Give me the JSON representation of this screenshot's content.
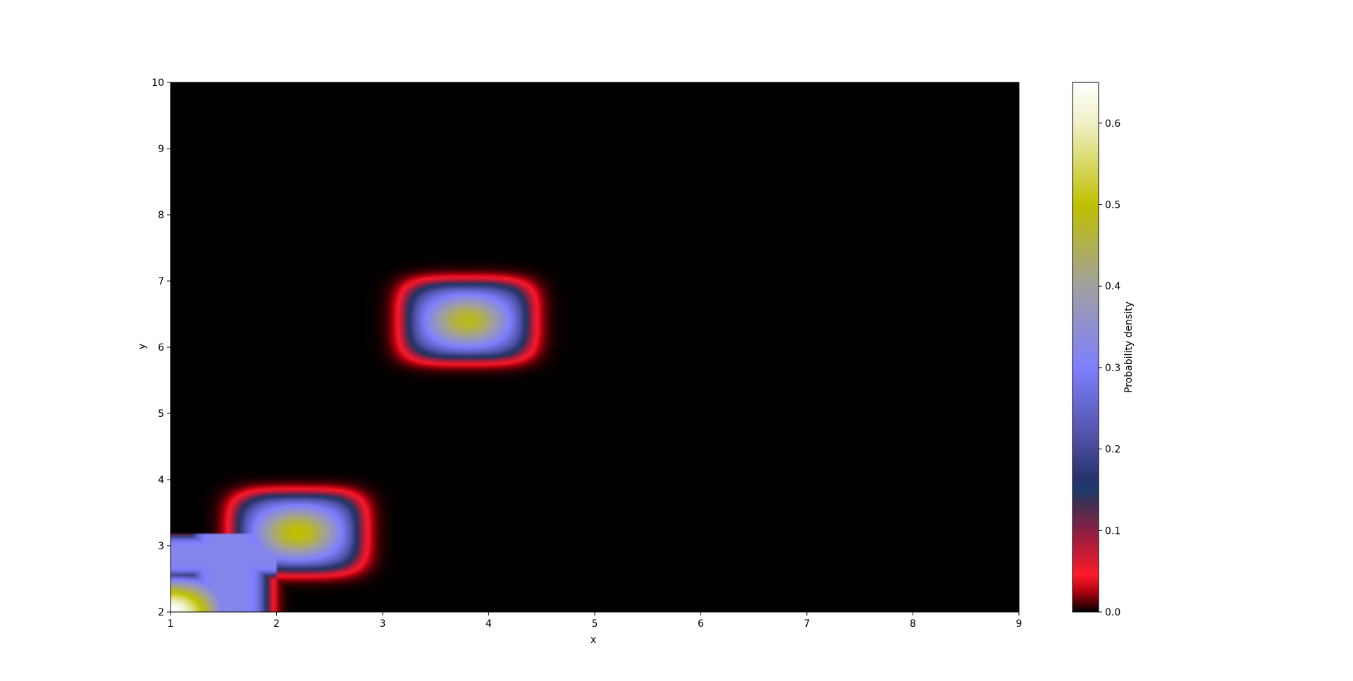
{
  "chart_data": {
    "type": "heatmap",
    "title": "",
    "xlabel": "x",
    "ylabel": "y",
    "xlim": [
      1,
      9
    ],
    "ylim": [
      2,
      10
    ],
    "x_ticks": [
      "1",
      "2",
      "3",
      "4",
      "5",
      "6",
      "7",
      "8",
      "9"
    ],
    "y_ticks": [
      "2",
      "3",
      "4",
      "5",
      "6",
      "7",
      "8",
      "9",
      "10"
    ],
    "colorbar": {
      "label": "Probability density",
      "range": [
        0.0,
        0.65
      ],
      "ticks": [
        "0.0",
        "0.1",
        "0.2",
        "0.3",
        "0.4",
        "0.5",
        "0.6"
      ],
      "colormap_stops": [
        {
          "value": 0.0,
          "color": "#000000"
        },
        {
          "value": 0.025,
          "color": "#b0000f"
        },
        {
          "value": 0.045,
          "color": "#ff1a2a"
        },
        {
          "value": 0.09,
          "color": "#a01d3e"
        },
        {
          "value": 0.135,
          "color": "#3b2f55"
        },
        {
          "value": 0.15,
          "color": "#1a3a6a"
        },
        {
          "value": 0.165,
          "color": "#28336e"
        },
        {
          "value": 0.21,
          "color": "#4d4fa0"
        },
        {
          "value": 0.3,
          "color": "#7f7fff"
        },
        {
          "value": 0.4,
          "color": "#a0a0a0"
        },
        {
          "value": 0.5,
          "color": "#c0c000"
        },
        {
          "value": 0.6,
          "color": "#f0f0c8"
        },
        {
          "value": 0.65,
          "color": "#ffffff"
        }
      ]
    },
    "blobs": [
      {
        "cx": 3.8,
        "cy": 6.4,
        "peak": 0.48
      },
      {
        "cx": 2.2,
        "cy": 3.2,
        "peak": 0.5
      },
      {
        "cx": 1.0,
        "cy": 2.0,
        "peak": 0.65
      }
    ]
  }
}
